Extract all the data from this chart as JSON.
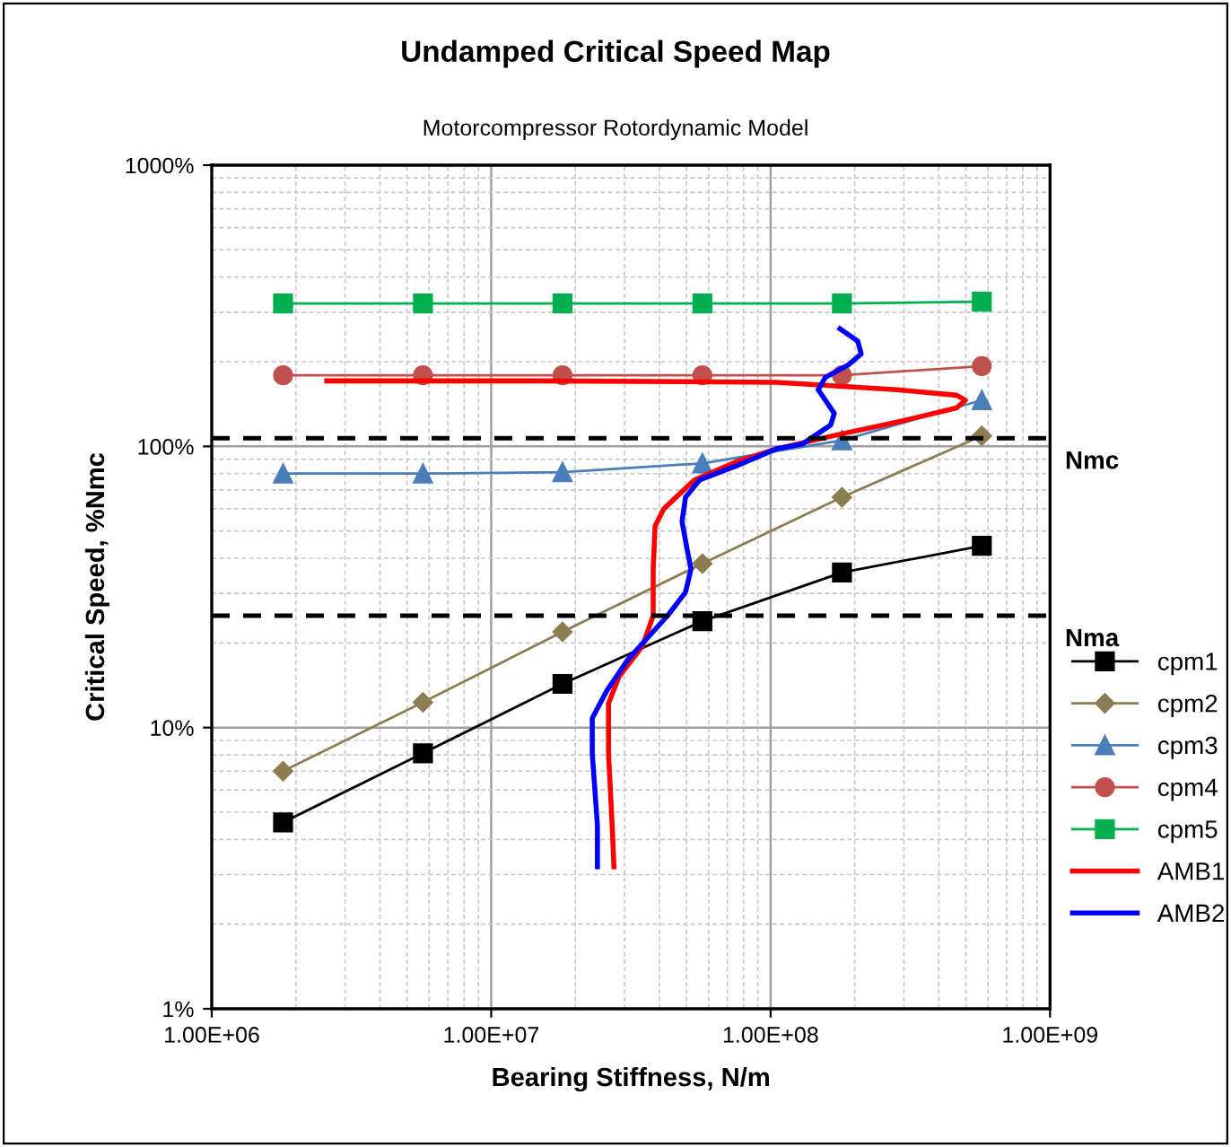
{
  "chart_data": {
    "type": "line",
    "title": "Undamped Critical Speed Map",
    "subtitle": "Motorcompressor Rotordynamic Model",
    "xlabel": "Bearing Stiffness, N/m",
    "ylabel": "Critical Speed, %Nmc",
    "log": "xy",
    "xlim": [
      1000000,
      1000000000
    ],
    "ylim": [
      1,
      1000
    ],
    "xticks": [
      {
        "value": 1000000,
        "label": "1.00E+06"
      },
      {
        "value": 10000000,
        "label": "1.00E+07"
      },
      {
        "value": 100000000,
        "label": "1.00E+08"
      },
      {
        "value": 1000000000,
        "label": "1.00E+09"
      }
    ],
    "yticks": [
      {
        "value": 1,
        "label": "1%"
      },
      {
        "value": 10,
        "label": "10%"
      },
      {
        "value": 100,
        "label": "100%"
      },
      {
        "value": 1000,
        "label": "1000%"
      }
    ],
    "grid": true,
    "legend": "right",
    "ref_lines": [
      {
        "axis": "y",
        "value": 107,
        "label": "Nmc",
        "color": "#000000",
        "line_style": "dashed"
      },
      {
        "axis": "y",
        "value": 25,
        "label": "Nma",
        "color": "#000000",
        "line_style": "dashed"
      }
    ],
    "series": [
      {
        "name": "cpm1",
        "color": "#000000",
        "marker": "square",
        "x": [
          1800000,
          5700000,
          18000000,
          57000000,
          180000000,
          570000000
        ],
        "values": [
          4.6,
          8.1,
          14.3,
          23.9,
          35.6,
          44.3
        ]
      },
      {
        "name": "cpm2",
        "color": "#8c7e52",
        "marker": "diamond",
        "x": [
          1800000,
          5700000,
          18000000,
          57000000,
          180000000,
          570000000
        ],
        "values": [
          7.0,
          12.3,
          21.9,
          38.3,
          65.9,
          109
        ]
      },
      {
        "name": "cpm3",
        "color": "#4a7ebb",
        "marker": "triangle",
        "x": [
          1800000,
          5700000,
          18000000,
          57000000,
          180000000,
          570000000
        ],
        "values": [
          80,
          80,
          81,
          87,
          105,
          146
        ]
      },
      {
        "name": "cpm4",
        "color": "#c0504d",
        "marker": "circle",
        "x": [
          1800000,
          5700000,
          18000000,
          57000000,
          180000000,
          570000000
        ],
        "values": [
          179,
          179,
          179,
          179,
          179,
          193
        ]
      },
      {
        "name": "cpm5",
        "color": "#00b050",
        "marker": "square",
        "x": [
          1800000,
          5700000,
          18000000,
          57000000,
          180000000,
          570000000
        ],
        "values": [
          322,
          322,
          322,
          322,
          322,
          327
        ]
      },
      {
        "name": "AMB1",
        "color": "#ff0000",
        "marker": "none",
        "x": [
          2580000,
          14700000,
          105000000,
          284000000,
          463000000,
          498000000,
          463000000,
          284000000,
          174000000,
          105000000,
          75000000,
          53400000,
          41500000,
          38600000,
          38000000,
          38000000,
          34800000,
          28700000,
          26300000,
          26300000,
          27100000,
          27500000
        ],
        "values": [
          171,
          171,
          169,
          159,
          152,
          146,
          137,
          122,
          110,
          98,
          88,
          76,
          60,
          52,
          36.6,
          25,
          19.5,
          15.2,
          12.2,
          8.1,
          4.5,
          3.2
        ]
      },
      {
        "name": "AMB2",
        "color": "#0000ff",
        "marker": "none",
        "x": [
          177000000,
          205000000,
          211000000,
          190000000,
          157000000,
          148000000,
          157000000,
          169000000,
          164000000,
          130000000,
          105000000,
          75000000,
          55800000,
          49600000,
          48200000,
          50400000,
          51900000,
          49600000,
          42800000,
          30900000,
          25900000,
          23000000,
          23000000,
          24000000,
          24000000
        ],
        "values": [
          262,
          237,
          213,
          195,
          176,
          159,
          146,
          131,
          119,
          102,
          98,
          85,
          76,
          66,
          54,
          42.4,
          36.6,
          30.3,
          25,
          17.5,
          13.5,
          10.8,
          8.1,
          4.5,
          3.2
        ]
      }
    ]
  }
}
